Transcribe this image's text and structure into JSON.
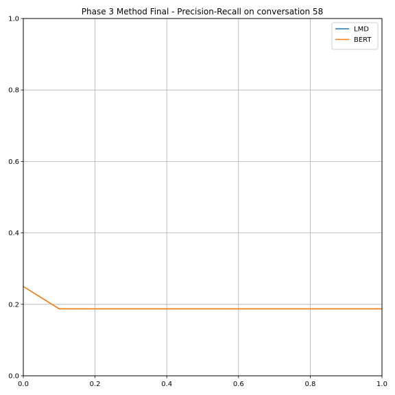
{
  "chart_data": {
    "type": "line",
    "title": "Phase 3 Method Final - Precision-Recall on conversation 58",
    "xlabel": "",
    "ylabel": "",
    "xlim": [
      0.0,
      1.0
    ],
    "ylim": [
      0.0,
      1.0
    ],
    "grid": true,
    "legend_position": "top-right",
    "x_ticks": [
      "0.0",
      "0.2",
      "0.4",
      "0.6",
      "0.8",
      "1.0"
    ],
    "y_ticks": [
      "0.0",
      "0.2",
      "0.4",
      "0.6",
      "0.8",
      "1.0"
    ],
    "series": [
      {
        "name": "LMD",
        "color": "#1f77b4",
        "points": [
          [
            0.0,
            0.25
          ],
          [
            0.1,
            0.1875
          ],
          [
            1.0,
            0.1875
          ]
        ]
      },
      {
        "name": "BERT",
        "color": "#ff7f0e",
        "points": [
          [
            0.0,
            0.25
          ],
          [
            0.1,
            0.1875
          ],
          [
            1.0,
            0.1875
          ]
        ]
      }
    ]
  }
}
